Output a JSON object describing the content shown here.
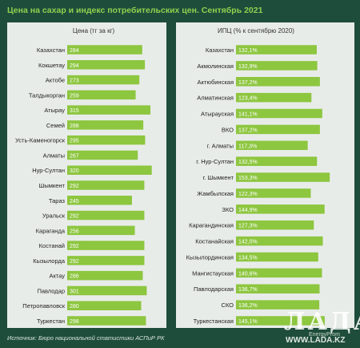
{
  "title": "Цена на сахар и индекс потребительских цен. Сентябрь 2021",
  "source": "Источник: Бюро национальной статистики АСПиР РК",
  "brand": "EnergyProm",
  "watermark": {
    "text": "ЛАДА",
    "url": "WWW.LADA.KZ"
  },
  "colors": {
    "background": "#1f4d3b",
    "panel": "#e8ece9",
    "bar": "#8dc63f",
    "title": "#8fd14f"
  },
  "chart_data": [
    {
      "type": "bar",
      "orientation": "horizontal",
      "title": "Цена (тг за кг)",
      "categories": [
        "Казахстан",
        "Кокшетау",
        "Актобе",
        "Талдыкорган",
        "Атырау",
        "Семей",
        "Усть-Каменогорск",
        "Алматы",
        "Нур-Султан",
        "Шымкент",
        "Тараз",
        "Уральск",
        "Караганда",
        "Костанай",
        "Кызылорда",
        "Актау",
        "Павлодар",
        "Петропавловск",
        "Туркестан"
      ],
      "values": [
        284,
        294,
        273,
        259,
        315,
        288,
        295,
        267,
        320,
        292,
        245,
        292,
        256,
        292,
        292,
        286,
        301,
        280,
        298
      ],
      "labels": [
        "284",
        "294",
        "273",
        "259",
        "315",
        "288",
        "295",
        "267",
        "320",
        "292",
        "245",
        "292",
        "256",
        "292",
        "292",
        "286",
        "301",
        "280",
        "298"
      ],
      "xlim": [
        0,
        330
      ]
    },
    {
      "type": "bar",
      "orientation": "horizontal",
      "title": "ИПЦ (% к сентябрю 2020)",
      "categories": [
        "Казахстан",
        "Акмолинская",
        "Актюбинская",
        "Алматинская",
        "Атырауская",
        "ВКО",
        "г. Алматы",
        "г. Нур-Султан",
        "г. Шымкент",
        "Жамбылская",
        "ЗКО",
        "Карагандинская",
        "Костанайская",
        "Кызылординская",
        "Мангистауская",
        "Павлодарская",
        "СКО",
        "Туркестанская"
      ],
      "values": [
        132.1,
        132.9,
        137.2,
        123.4,
        141.1,
        137.2,
        117.3,
        132.5,
        153.3,
        122.3,
        144.9,
        127.3,
        142.0,
        134.5,
        140.6,
        136.7,
        136.2,
        145.1
      ],
      "labels": [
        "132,1%",
        "132,9%",
        "137,2%",
        "123,4%",
        "141,1%",
        "137,2%",
        "117,3%",
        "132,5%",
        "153,3%",
        "122,3%",
        "144,9%",
        "127,3%",
        "142,0%",
        "134,5%",
        "140,6%",
        "136,7%",
        "136,2%",
        "145,1%"
      ],
      "xlim": [
        0,
        157
      ]
    }
  ]
}
